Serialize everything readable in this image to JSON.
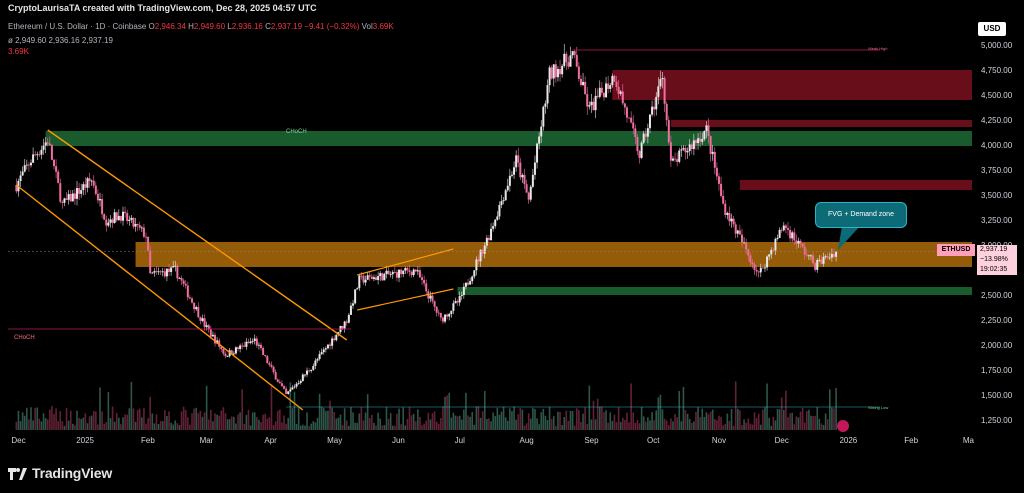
{
  "header": {
    "credit": "CryptoLaurisaTA created with TradingView.com, Dec 28, 2025 04:57 UTC",
    "symbol": "Ethereum / U.S. Dollar · 1D · Coinbase",
    "o_label": "O",
    "o": "2,946.34",
    "h_label": "H",
    "h": "2,949.60",
    "l_label": "L",
    "l": "2,936.16",
    "c_label": "C",
    "c": "2,937.19",
    "change": "−9.41 (−0.32%)",
    "vol_label": "Vol",
    "vol": "3.69K",
    "line2": "ø  2,949.60  2,936.16  2,937.19",
    "line3": "3.69K",
    "currency": "USD"
  },
  "price_tag": {
    "symbol": "ETHUSD",
    "price": "2,937.19",
    "change_pct": "−13.98%",
    "countdown": "19:02:35"
  },
  "callout": "FVG + Demand zone",
  "branding": "TradingView",
  "colors": {
    "up": "#e8e8e8",
    "down": "#f06ea0",
    "supply": "#7a1020",
    "demand": "#1f6b35",
    "orange_zone": "#c57a0b",
    "channel": "#ff9800",
    "choch_line": "#c2185b"
  },
  "chart_data": {
    "type": "candlestick",
    "title": "Ethereum / U.S. Dollar · 1D · Coinbase",
    "y_axis": {
      "ticks": [
        "5,000.00",
        "4,750.00",
        "4,500.00",
        "4,250.00",
        "4,000.00",
        "3,750.00",
        "3,500.00",
        "3,250.00",
        "3,000.00",
        "2,750.00",
        "2,500.00",
        "2,250.00",
        "2,000.00",
        "1,750.00",
        "1,500.00",
        "1,250.00"
      ],
      "range": [
        1250,
        5000
      ]
    },
    "x_axis": {
      "ticks": [
        "Dec",
        "2025",
        "Feb",
        "Mar",
        "Apr",
        "May",
        "Jun",
        "Jul",
        "Aug",
        "Sep",
        "Oct",
        "Nov",
        "Dec",
        "2026",
        "Feb",
        "Ma"
      ]
    },
    "price_path": [
      [
        "2024-12-01",
        3600
      ],
      [
        "2024-12-08",
        3850
      ],
      [
        "2024-12-16",
        4050
      ],
      [
        "2024-12-23",
        3400
      ],
      [
        "2025-01-06",
        3650
      ],
      [
        "2025-01-13",
        3250
      ],
      [
        "2025-01-20",
        3300
      ],
      [
        "2025-02-01",
        3100
      ],
      [
        "2025-02-03",
        2700
      ],
      [
        "2025-02-15",
        2750
      ],
      [
        "2025-03-01",
        2200
      ],
      [
        "2025-03-11",
        1900
      ],
      [
        "2025-03-25",
        2050
      ],
      [
        "2025-04-09",
        1500
      ],
      [
        "2025-04-22",
        1800
      ],
      [
        "2025-05-08",
        2250
      ],
      [
        "2025-05-14",
        2650
      ],
      [
        "2025-06-10",
        2750
      ],
      [
        "2025-06-22",
        2250
      ],
      [
        "2025-07-01",
        2450
      ],
      [
        "2025-07-15",
        3100
      ],
      [
        "2025-07-28",
        3850
      ],
      [
        "2025-08-03",
        3450
      ],
      [
        "2025-08-13",
        4700
      ],
      [
        "2025-08-24",
        4900
      ],
      [
        "2025-09-01",
        4350
      ],
      [
        "2025-09-13",
        4700
      ],
      [
        "2025-09-25",
        3900
      ],
      [
        "2025-10-06",
        4700
      ],
      [
        "2025-10-10",
        3800
      ],
      [
        "2025-10-27",
        4150
      ],
      [
        "2025-11-04",
        3400
      ],
      [
        "2025-11-21",
        2700
      ],
      [
        "2025-12-03",
        3200
      ],
      [
        "2025-12-18",
        2800
      ],
      [
        "2025-12-28",
        2937
      ]
    ],
    "zones": [
      {
        "label": "",
        "kind": "supply",
        "from": "2025-09-12",
        "y": [
          4450,
          4750
        ]
      },
      {
        "label": "",
        "kind": "supply",
        "from": "2025-10-10",
        "y": [
          4180,
          4250
        ]
      },
      {
        "label": "",
        "kind": "supply",
        "from": "2025-11-12",
        "y": [
          3550,
          3650
        ]
      },
      {
        "label": "",
        "kind": "demand",
        "from": "2024-12-15",
        "y": [
          3990,
          4140
        ]
      },
      {
        "label": "",
        "kind": "demand",
        "from": "2025-06-30",
        "y": [
          2500,
          2580
        ]
      },
      {
        "label": "FVG + Demand zone",
        "kind": "orange",
        "from": "2025-01-27",
        "y": [
          2780,
          3030
        ]
      }
    ],
    "annotations": [
      "CHoCH",
      "CHoCH",
      "Weak High",
      "Strong Low",
      "FVG + Demand zone"
    ],
    "last_price": "2,937.19",
    "legend": "none",
    "grid": false
  }
}
